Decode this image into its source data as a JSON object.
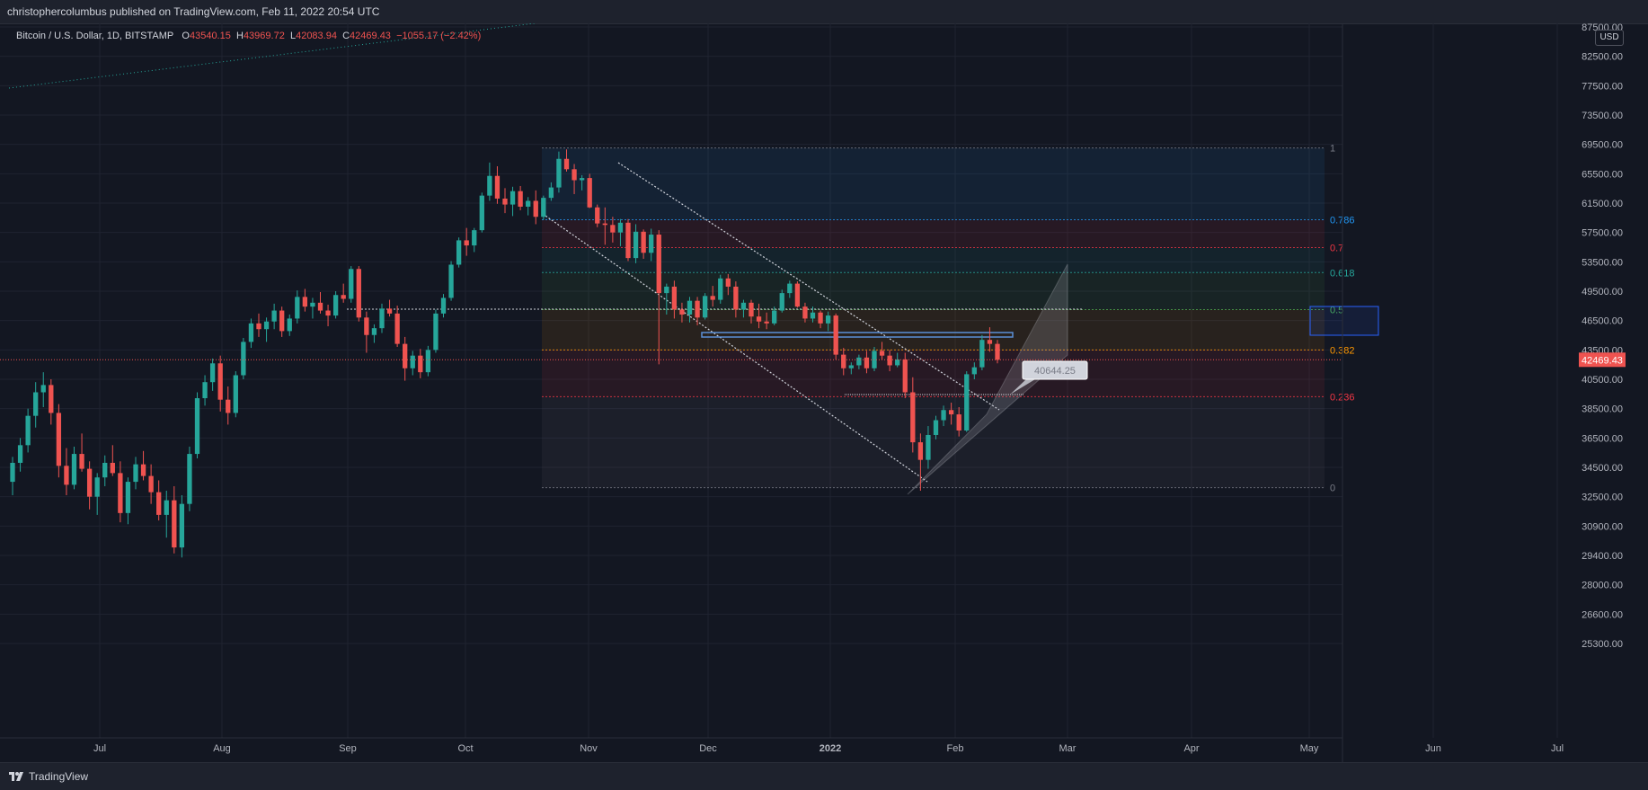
{
  "header": {
    "published": "christophercolumbus published on TradingView.com, Feb 11, 2022 20:54 UTC"
  },
  "legend": {
    "symbol": "Bitcoin / U.S. Dollar, 1D, BITSTAMP",
    "o_label": "O",
    "o_value": "43540.15",
    "h_label": "H",
    "h_value": "43969.72",
    "l_label": "L",
    "l_value": "42083.94",
    "c_label": "C",
    "c_value": "42469.43",
    "change": "−1055.17 (−2.42%)"
  },
  "currency": "USD",
  "footer": {
    "brand": "TradingView"
  },
  "colors": {
    "background": "#131722",
    "up": "#26a69a",
    "down": "#ef5350",
    "grid": "#1f2330"
  },
  "chart_data": {
    "type": "candlestick",
    "symbol": "BTCUSD",
    "timeframe": "1D",
    "x_ticks": [
      "Jul",
      "Aug",
      "Sep",
      "Oct",
      "Nov",
      "Dec",
      "2022",
      "Feb",
      "Mar",
      "Apr",
      "May",
      "Jun",
      "Jul"
    ],
    "y_ticks": [
      "87500.00",
      "82500.00",
      "77500.00",
      "73500.00",
      "69500.00",
      "65500.00",
      "61500.00",
      "57500.00",
      "53500.00",
      "49500.00",
      "46500.00",
      "43500.00",
      "40500.00",
      "38500.00",
      "36500.00",
      "34500.00",
      "32500.00",
      "30900.00",
      "29400.00",
      "28000.00",
      "26600.00",
      "25300.00"
    ],
    "y_scale": "log",
    "grid": true,
    "last_price": "42469.43",
    "annotation_label": "40644.25",
    "fib_levels": [
      {
        "label": "1",
        "price": 69000,
        "color": "#787b86"
      },
      {
        "label": "0.786",
        "price": 59200,
        "color": "#2196f3"
      },
      {
        "label": "0.7",
        "price": 55400,
        "color": "#f23645"
      },
      {
        "label": "0.618",
        "price": 52000,
        "color": "#26a69a"
      },
      {
        "label": "0.5",
        "price": 47600,
        "color": "#4caf50"
      },
      {
        "label": "0.382",
        "price": 43500,
        "color": "#ff9800"
      },
      {
        "label": "0.236",
        "price": 39300,
        "color": "#f23645"
      },
      {
        "label": "0",
        "price": 33100,
        "color": "#787b86"
      }
    ],
    "ohlc": [
      [
        33500,
        35200,
        32600,
        34800
      ],
      [
        34800,
        36500,
        34200,
        36000
      ],
      [
        36000,
        38500,
        35500,
        38000
      ],
      [
        38000,
        40300,
        37200,
        39600
      ],
      [
        39600,
        41200,
        38600,
        40100
      ],
      [
        40100,
        40500,
        37400,
        38200
      ],
      [
        38200,
        38800,
        33800,
        34600
      ],
      [
        34600,
        35800,
        32600,
        33300
      ],
      [
        33300,
        35900,
        33000,
        35400
      ],
      [
        35400,
        36800,
        34200,
        34400
      ],
      [
        34400,
        34900,
        31800,
        32500
      ],
      [
        32500,
        34100,
        31500,
        33800
      ],
      [
        33800,
        35300,
        33200,
        34800
      ],
      [
        34800,
        36000,
        33900,
        34100
      ],
      [
        34100,
        34900,
        31100,
        31600
      ],
      [
        31600,
        33800,
        31000,
        33500
      ],
      [
        33500,
        35200,
        33000,
        34700
      ],
      [
        34700,
        35600,
        33600,
        33900
      ],
      [
        33900,
        34700,
        32100,
        32800
      ],
      [
        32800,
        33600,
        31200,
        31500
      ],
      [
        31500,
        32900,
        30300,
        32300
      ],
      [
        32300,
        33200,
        29500,
        29800
      ],
      [
        29800,
        32600,
        29300,
        32100
      ],
      [
        32100,
        35900,
        31700,
        35400
      ],
      [
        35400,
        39600,
        35100,
        39200
      ],
      [
        39200,
        40900,
        38700,
        40300
      ],
      [
        40300,
        42600,
        39700,
        42100
      ],
      [
        42100,
        42900,
        38300,
        39100
      ],
      [
        39100,
        40000,
        37400,
        38200
      ],
      [
        38200,
        41300,
        37900,
        40900
      ],
      [
        40900,
        44700,
        40500,
        44300
      ],
      [
        44300,
        46700,
        43700,
        46200
      ],
      [
        46200,
        47200,
        44800,
        45600
      ],
      [
        45600,
        46800,
        44300,
        46400
      ],
      [
        46400,
        48200,
        45600,
        47500
      ],
      [
        47500,
        47900,
        44800,
        45400
      ],
      [
        45400,
        47100,
        44900,
        46700
      ],
      [
        46700,
        49600,
        46200,
        48900
      ],
      [
        48900,
        49800,
        47400,
        47900
      ],
      [
        47900,
        48800,
        46700,
        48300
      ],
      [
        48300,
        49400,
        47200,
        47500
      ],
      [
        47500,
        48100,
        45900,
        47000
      ],
      [
        47000,
        49500,
        46700,
        49100
      ],
      [
        49100,
        50500,
        48300,
        48700
      ],
      [
        48700,
        52900,
        48300,
        52500
      ],
      [
        52500,
        52900,
        46400,
        46800
      ],
      [
        46800,
        47400,
        43200,
        45000
      ],
      [
        45000,
        46100,
        44200,
        45700
      ],
      [
        45700,
        48200,
        45200,
        47700
      ],
      [
        47700,
        48600,
        46900,
        47200
      ],
      [
        47200,
        48000,
        43800,
        44100
      ],
      [
        44100,
        44800,
        40400,
        41600
      ],
      [
        41600,
        43400,
        40900,
        42900
      ],
      [
        42900,
        43600,
        40600,
        41200
      ],
      [
        41200,
        43900,
        40800,
        43500
      ],
      [
        43500,
        47600,
        43200,
        47200
      ],
      [
        47200,
        49200,
        46800,
        48800
      ],
      [
        48800,
        53600,
        48500,
        53100
      ],
      [
        53100,
        56800,
        52700,
        56400
      ],
      [
        56400,
        58100,
        54300,
        55700
      ],
      [
        55700,
        58100,
        54800,
        57800
      ],
      [
        57800,
        62900,
        57500,
        62500
      ],
      [
        62500,
        67000,
        61800,
        65200
      ],
      [
        65200,
        66500,
        61400,
        62100
      ],
      [
        62100,
        63500,
        60100,
        61300
      ],
      [
        61300,
        63700,
        59700,
        63100
      ],
      [
        63100,
        63800,
        60500,
        61000
      ],
      [
        61000,
        62300,
        59800,
        61800
      ],
      [
        61800,
        63200,
        58600,
        59600
      ],
      [
        59600,
        62500,
        59200,
        62200
      ],
      [
        62200,
        64300,
        61800,
        63600
      ],
      [
        63600,
        68500,
        62900,
        67500
      ],
      [
        67500,
        68800,
        65800,
        66100
      ],
      [
        66100,
        66800,
        62700,
        64600
      ],
      [
        64600,
        65300,
        63200,
        64900
      ],
      [
        64900,
        65500,
        60800,
        60900
      ],
      [
        60900,
        61300,
        58200,
        58700
      ],
      [
        58700,
        60900,
        55800,
        58500
      ],
      [
        58500,
        59600,
        56100,
        57500
      ],
      [
        57500,
        59300,
        55600,
        58800
      ],
      [
        58800,
        59300,
        53600,
        54000
      ],
      [
        54000,
        58600,
        53300,
        57600
      ],
      [
        57600,
        57900,
        53900,
        54700
      ],
      [
        54700,
        58000,
        53600,
        57200
      ],
      [
        57200,
        57800,
        42000,
        49300
      ],
      [
        49300,
        50500,
        47100,
        50100
      ],
      [
        50100,
        50900,
        46700,
        47600
      ],
      [
        47600,
        48300,
        46300,
        47100
      ],
      [
        47100,
        48900,
        46300,
        48500
      ],
      [
        48500,
        48900,
        46000,
        46800
      ],
      [
        46800,
        49300,
        46600,
        49000
      ],
      [
        49000,
        50200,
        47900,
        48600
      ],
      [
        48600,
        51700,
        48200,
        51200
      ],
      [
        51200,
        51800,
        49100,
        50100
      ],
      [
        50100,
        50800,
        46800,
        47600
      ],
      [
        47600,
        48600,
        46800,
        48300
      ],
      [
        48300,
        48600,
        46200,
        46900
      ],
      [
        46900,
        48200,
        45700,
        46400
      ],
      [
        46400,
        47300,
        45600,
        46200
      ],
      [
        46200,
        47900,
        46000,
        47500
      ],
      [
        47500,
        49700,
        47300,
        49300
      ],
      [
        49300,
        50900,
        48800,
        50500
      ],
      [
        50500,
        50800,
        47800,
        47900
      ],
      [
        47900,
        48300,
        46300,
        46700
      ],
      [
        46700,
        47900,
        46300,
        47300
      ],
      [
        47300,
        47500,
        45700,
        46200
      ],
      [
        46200,
        47400,
        45400,
        47000
      ],
      [
        47000,
        47200,
        42500,
        43000
      ],
      [
        43000,
        43700,
        40900,
        41600
      ],
      [
        41600,
        42200,
        41000,
        41900
      ],
      [
        41900,
        43000,
        41500,
        42700
      ],
      [
        42700,
        43400,
        41100,
        41600
      ],
      [
        41600,
        43800,
        41300,
        43400
      ],
      [
        43400,
        44300,
        42500,
        42900
      ],
      [
        42900,
        43500,
        41300,
        41900
      ],
      [
        41900,
        43200,
        41700,
        42500
      ],
      [
        42500,
        43200,
        39200,
        39600
      ],
      [
        39600,
        40700,
        35500,
        36200
      ],
      [
        36200,
        36800,
        32900,
        35000
      ],
      [
        35000,
        37300,
        34400,
        36700
      ],
      [
        36700,
        38000,
        36400,
        37700
      ],
      [
        37700,
        38700,
        37300,
        38400
      ],
      [
        38400,
        38900,
        37400,
        38100
      ],
      [
        38100,
        38600,
        36600,
        37000
      ],
      [
        37000,
        41300,
        36900,
        41000
      ],
      [
        41000,
        42200,
        40500,
        41700
      ],
      [
        41700,
        45000,
        41400,
        44500
      ],
      [
        44500,
        45800,
        43300,
        44100
      ],
      [
        44100,
        44500,
        42100,
        42469
      ]
    ]
  }
}
